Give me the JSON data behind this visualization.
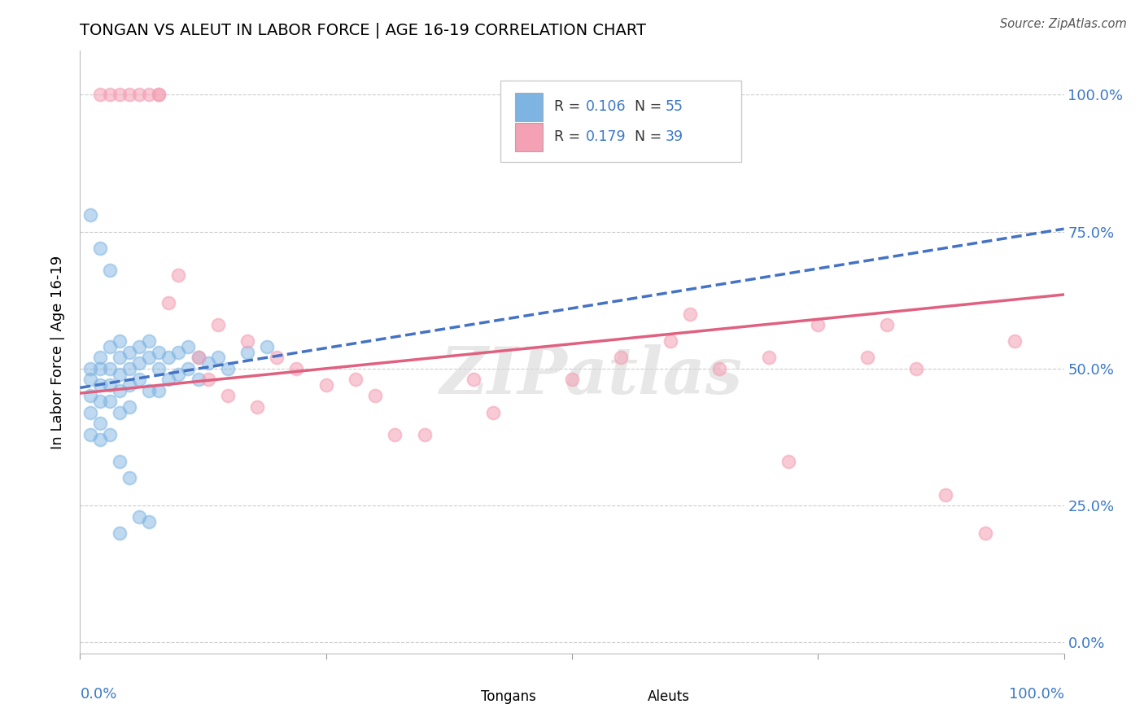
{
  "title": "TONGAN VS ALEUT IN LABOR FORCE | AGE 16-19 CORRELATION CHART",
  "source": "Source: ZipAtlas.com",
  "ylabel": "In Labor Force | Age 16-19",
  "ytick_labels": [
    "0.0%",
    "25.0%",
    "50.0%",
    "75.0%",
    "100.0%"
  ],
  "ytick_values": [
    0.0,
    0.25,
    0.5,
    0.75,
    1.0
  ],
  "xlim": [
    0.0,
    1.0
  ],
  "ylim": [
    -0.02,
    1.08
  ],
  "watermark": "ZIPatlas",
  "tongan_color": "#7eb4e2",
  "aleut_color": "#f4a0b5",
  "tongan_line_color": "#4472c4",
  "aleut_line_color": "#e06080",
  "grid_color": "#cccccc",
  "background_color": "#ffffff",
  "tongan_x": [
    0.01,
    0.01,
    0.01,
    0.01,
    0.01,
    0.02,
    0.02,
    0.02,
    0.02,
    0.02,
    0.02,
    0.03,
    0.03,
    0.03,
    0.03,
    0.03,
    0.04,
    0.04,
    0.04,
    0.04,
    0.04,
    0.05,
    0.05,
    0.05,
    0.05,
    0.06,
    0.06,
    0.06,
    0.07,
    0.07,
    0.07,
    0.08,
    0.08,
    0.08,
    0.09,
    0.09,
    0.1,
    0.1,
    0.11,
    0.11,
    0.12,
    0.12,
    0.13,
    0.14,
    0.15,
    0.17,
    0.19,
    0.01,
    0.02,
    0.03,
    0.04,
    0.05,
    0.06,
    0.07,
    0.04
  ],
  "tongan_y": [
    0.5,
    0.48,
    0.45,
    0.42,
    0.38,
    0.52,
    0.5,
    0.47,
    0.44,
    0.4,
    0.37,
    0.54,
    0.5,
    0.47,
    0.44,
    0.38,
    0.55,
    0.52,
    0.49,
    0.46,
    0.42,
    0.53,
    0.5,
    0.47,
    0.43,
    0.54,
    0.51,
    0.48,
    0.55,
    0.52,
    0.46,
    0.53,
    0.5,
    0.46,
    0.52,
    0.48,
    0.53,
    0.49,
    0.54,
    0.5,
    0.52,
    0.48,
    0.51,
    0.52,
    0.5,
    0.53,
    0.54,
    0.78,
    0.72,
    0.68,
    0.33,
    0.3,
    0.23,
    0.22,
    0.2
  ],
  "aleut_x": [
    0.02,
    0.03,
    0.04,
    0.05,
    0.06,
    0.07,
    0.08,
    0.08,
    0.09,
    0.1,
    0.12,
    0.13,
    0.14,
    0.15,
    0.17,
    0.18,
    0.2,
    0.22,
    0.25,
    0.28,
    0.3,
    0.32,
    0.35,
    0.4,
    0.42,
    0.5,
    0.55,
    0.6,
    0.62,
    0.65,
    0.7,
    0.72,
    0.75,
    0.8,
    0.82,
    0.85,
    0.88,
    0.92,
    0.95
  ],
  "aleut_y": [
    1.0,
    1.0,
    1.0,
    1.0,
    1.0,
    1.0,
    1.0,
    1.0,
    0.62,
    0.67,
    0.52,
    0.48,
    0.58,
    0.45,
    0.55,
    0.43,
    0.52,
    0.5,
    0.47,
    0.48,
    0.45,
    0.38,
    0.38,
    0.48,
    0.42,
    0.48,
    0.52,
    0.55,
    0.6,
    0.5,
    0.52,
    0.33,
    0.58,
    0.52,
    0.58,
    0.5,
    0.27,
    0.2,
    0.55
  ]
}
